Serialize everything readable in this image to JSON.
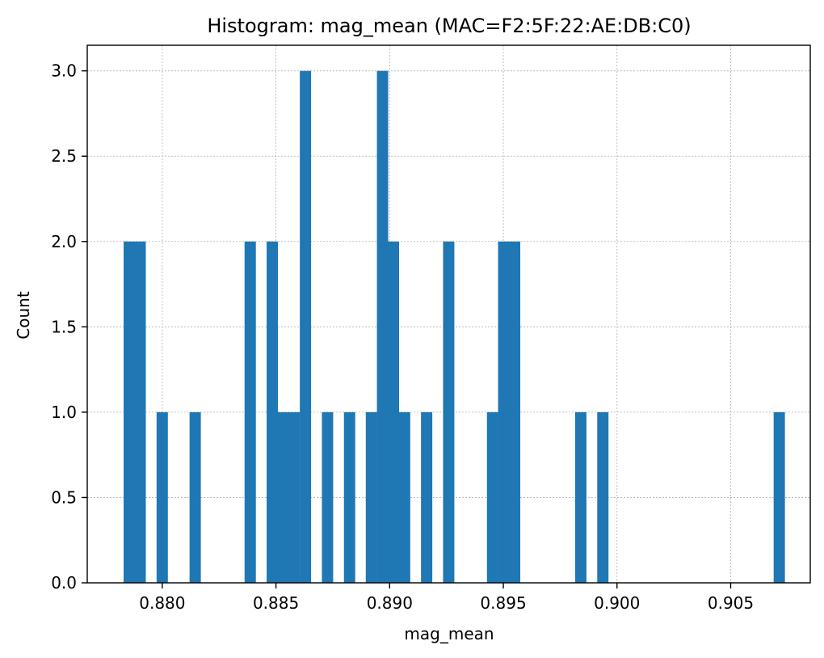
{
  "chart_data": {
    "type": "bar",
    "title": "Histogram: mag_mean (MAC=F2:5F:22:AE:DB:C0)",
    "xlabel": "mag_mean",
    "ylabel": "Count",
    "xlim": [
      0.8767,
      0.9085
    ],
    "ylim": [
      0.0,
      3.15
    ],
    "grid": true,
    "bin_width": 0.000485,
    "x_ticks": [
      {
        "value": 0.88,
        "label": "0.880"
      },
      {
        "value": 0.885,
        "label": "0.885"
      },
      {
        "value": 0.89,
        "label": "0.890"
      },
      {
        "value": 0.895,
        "label": "0.895"
      },
      {
        "value": 0.9,
        "label": "0.900"
      },
      {
        "value": 0.905,
        "label": "0.905"
      }
    ],
    "y_ticks": [
      {
        "value": 0.0,
        "label": "0.0"
      },
      {
        "value": 0.5,
        "label": "0.5"
      },
      {
        "value": 1.0,
        "label": "1.0"
      },
      {
        "value": 1.5,
        "label": "1.5"
      },
      {
        "value": 2.0,
        "label": "2.0"
      },
      {
        "value": 2.5,
        "label": "2.5"
      },
      {
        "value": 3.0,
        "label": "3.0"
      }
    ],
    "bins": [
      {
        "x_start": 0.8783,
        "count": 2
      },
      {
        "x_start": 0.87878,
        "count": 2
      },
      {
        "x_start": 0.87927,
        "count": 0
      },
      {
        "x_start": 0.87975,
        "count": 1
      },
      {
        "x_start": 0.8812,
        "count": 1
      },
      {
        "x_start": 0.88362,
        "count": 2
      },
      {
        "x_start": 0.88459,
        "count": 2
      },
      {
        "x_start": 0.88508,
        "count": 1
      },
      {
        "x_start": 0.88556,
        "count": 1
      },
      {
        "x_start": 0.88605,
        "count": 3
      },
      {
        "x_start": 0.88702,
        "count": 1
      },
      {
        "x_start": 0.88799,
        "count": 1
      },
      {
        "x_start": 0.88895,
        "count": 1
      },
      {
        "x_start": 0.88944,
        "count": 3
      },
      {
        "x_start": 0.88992,
        "count": 2
      },
      {
        "x_start": 0.89041,
        "count": 1
      },
      {
        "x_start": 0.89138,
        "count": 1
      },
      {
        "x_start": 0.89235,
        "count": 2
      },
      {
        "x_start": 0.89428,
        "count": 1
      },
      {
        "x_start": 0.89477,
        "count": 2
      },
      {
        "x_start": 0.89525,
        "count": 2
      },
      {
        "x_start": 0.89816,
        "count": 1
      },
      {
        "x_start": 0.89913,
        "count": 1
      },
      {
        "x_start": 0.90689,
        "count": 1
      }
    ]
  }
}
